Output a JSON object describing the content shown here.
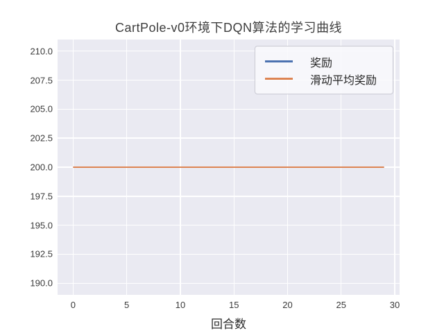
{
  "figure": {
    "title": "CartPole-v0环境下DQN算法的学习曲线",
    "xlabel": "回合数"
  },
  "legend": {
    "items": [
      {
        "label": "奖励",
        "color": "#4C72B0"
      },
      {
        "label": "滑动平均奖励",
        "color": "#DD8452"
      }
    ]
  },
  "colors": {
    "plot_background": "#EAEAF2",
    "grid": "#FFFFFF",
    "reward_line": "#4C72B0",
    "moving_average_line": "#DD8452",
    "text": "#262626"
  },
  "chart_data": {
    "type": "line",
    "title": "CartPole-v0环境下DQN算法的学习曲线",
    "xlabel": "回合数",
    "ylabel": "",
    "x": [
      0,
      1,
      2,
      3,
      4,
      5,
      6,
      7,
      8,
      9,
      10,
      11,
      12,
      13,
      14,
      15,
      16,
      17,
      18,
      19,
      20,
      21,
      22,
      23,
      24,
      25,
      26,
      27,
      28,
      29
    ],
    "series": [
      {
        "name": "奖励",
        "color": "#4C72B0",
        "values": [
          200,
          200,
          200,
          200,
          200,
          200,
          200,
          200,
          200,
          200,
          200,
          200,
          200,
          200,
          200,
          200,
          200,
          200,
          200,
          200,
          200,
          200,
          200,
          200,
          200,
          200,
          200,
          200,
          200,
          200
        ]
      },
      {
        "name": "滑动平均奖励",
        "color": "#DD8452",
        "values": [
          200,
          200,
          200,
          200,
          200,
          200,
          200,
          200,
          200,
          200,
          200,
          200,
          200,
          200,
          200,
          200,
          200,
          200,
          200,
          200,
          200,
          200,
          200,
          200,
          200,
          200,
          200,
          200,
          200,
          200
        ]
      }
    ],
    "xlim": [
      -1.45,
      30.45
    ],
    "ylim": [
      189,
      211
    ],
    "xticks": [
      0,
      5,
      10,
      15,
      20,
      25,
      30
    ],
    "xtick_labels": [
      "0",
      "5",
      "10",
      "15",
      "20",
      "25",
      "30"
    ],
    "yticks": [
      210.0,
      207.5,
      205.0,
      202.5,
      200.0,
      197.5,
      195.0,
      192.5,
      190.0
    ],
    "ytick_labels": [
      "210.0",
      "207.5",
      "205.0",
      "202.5",
      "200.0",
      "197.5",
      "195.0",
      "192.5",
      "190.0"
    ],
    "grid": true,
    "legend_position": "upper right"
  }
}
